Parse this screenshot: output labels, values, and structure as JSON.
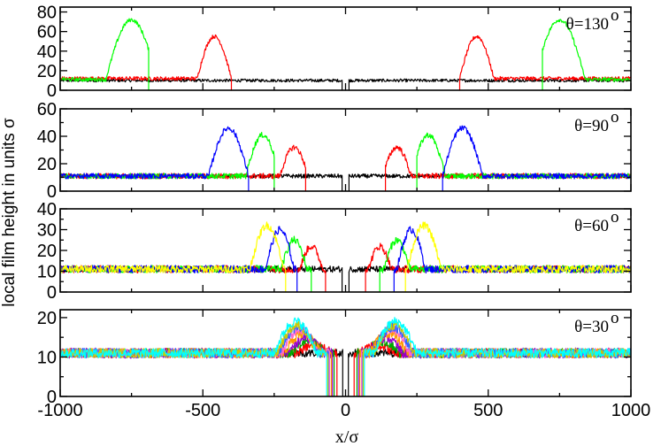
{
  "chart_data": {
    "type": "line",
    "ylabel": "local film height in units σ",
    "xlabel": "x/σ",
    "xlim": [
      -1000,
      1000
    ],
    "xticks": [
      -1000,
      -500,
      0,
      500,
      1000
    ],
    "xtick_labels": [
      "-1000",
      "-500",
      "0",
      "500",
      "1000"
    ],
    "colors": {
      "black": "#000000",
      "red": "#ff0000",
      "green": "#00ff00",
      "blue": "#0000ff",
      "yellow": "#ffff00",
      "cyan": "#00ffff"
    },
    "panels": [
      {
        "label": "θ=130",
        "label_sup": "o",
        "ylim": [
          0,
          85
        ],
        "yticks": [
          0,
          20,
          40,
          60,
          80
        ],
        "ytick_labels": [
          "0",
          "20",
          "40",
          "60",
          "80"
        ],
        "baseline_values": [
          {
            "color": "black",
            "base": 10,
            "noise": 1.5,
            "gap_center": 0,
            "gap_halfwidth": 12,
            "peak": null
          },
          {
            "color": "red",
            "base": 12,
            "noise": 2,
            "gap_center": 0,
            "gap_halfwidth": 400,
            "peak": {
              "pos": 460,
              "height": 55,
              "width": 60
            }
          },
          {
            "color": "green",
            "base": 11,
            "noise": 2,
            "gap_center": 0,
            "gap_halfwidth": 690,
            "peak": {
              "pos": 750,
              "height": 72,
              "width": 90
            }
          }
        ]
      },
      {
        "label": "θ=90",
        "label_sup": "o",
        "ylim": [
          0,
          60
        ],
        "yticks": [
          0,
          20,
          40,
          60
        ],
        "ytick_labels": [
          "0",
          "20",
          "40",
          "60"
        ],
        "baseline_values": [
          {
            "color": "black",
            "base": 11,
            "noise": 1.5,
            "gap_center": 0,
            "gap_halfwidth": 12,
            "peak": null
          },
          {
            "color": "red",
            "base": 11,
            "noise": 2,
            "gap_center": 0,
            "gap_halfwidth": 140,
            "peak": {
              "pos": 180,
              "height": 32,
              "width": 50
            }
          },
          {
            "color": "green",
            "base": 11,
            "noise": 2,
            "gap_center": 0,
            "gap_halfwidth": 250,
            "peak": {
              "pos": 290,
              "height": 41,
              "width": 60
            }
          },
          {
            "color": "blue",
            "base": 11,
            "noise": 2,
            "gap_center": 0,
            "gap_halfwidth": 340,
            "peak": {
              "pos": 410,
              "height": 46,
              "width": 70
            }
          }
        ]
      },
      {
        "label": "θ=60",
        "label_sup": "o",
        "ylim": [
          0,
          40
        ],
        "yticks": [
          0,
          10,
          20,
          30,
          40
        ],
        "ytick_labels": [
          "0",
          "10",
          "20",
          "30",
          "40"
        ],
        "baseline_values": [
          {
            "color": "black",
            "base": 11,
            "noise": 1.5,
            "gap_center": 0,
            "gap_halfwidth": 12,
            "peak": null
          },
          {
            "color": "red",
            "base": 11,
            "noise": 1.8,
            "gap_center": 0,
            "gap_halfwidth": 70,
            "peak": {
              "pos": 120,
              "height": 22,
              "width": 40
            }
          },
          {
            "color": "green",
            "base": 11,
            "noise": 1.8,
            "gap_center": 0,
            "gap_halfwidth": 120,
            "peak": {
              "pos": 180,
              "height": 25,
              "width": 45
            }
          },
          {
            "color": "blue",
            "base": 11,
            "noise": 1.8,
            "gap_center": 0,
            "gap_halfwidth": 170,
            "peak": {
              "pos": 230,
              "height": 30,
              "width": 50
            }
          },
          {
            "color": "yellow",
            "base": 11,
            "noise": 1.8,
            "gap_center": 0,
            "gap_halfwidth": 210,
            "peak": {
              "pos": 275,
              "height": 32,
              "width": 60
            }
          }
        ]
      },
      {
        "label": "θ=30",
        "label_sup": "o",
        "ylim": [
          0,
          22
        ],
        "yticks": [
          0,
          10,
          20
        ],
        "ytick_labels": [
          "0",
          "10",
          "20"
        ],
        "baseline_values": [
          {
            "color": "black",
            "base": 11,
            "noise": 1.0,
            "gap_center": 0,
            "gap_halfwidth": 10,
            "peak": null
          },
          {
            "color": "#ff0000",
            "base": 11,
            "noise": 1.2,
            "gap_center": 0,
            "gap_halfwidth": 30,
            "peak": {
              "pos": 110,
              "height": 13,
              "width": 60
            }
          },
          {
            "color": "#00aa00",
            "base": 11,
            "noise": 1.2,
            "gap_center": 0,
            "gap_halfwidth": 40,
            "peak": {
              "pos": 130,
              "height": 14,
              "width": 60
            }
          },
          {
            "color": "#9900cc",
            "base": 11,
            "noise": 1.3,
            "gap_center": 0,
            "gap_halfwidth": 45,
            "peak": {
              "pos": 140,
              "height": 15,
              "width": 60
            }
          },
          {
            "color": "#ff9900",
            "base": 11,
            "noise": 1.2,
            "gap_center": 0,
            "gap_halfwidth": 50,
            "peak": {
              "pos": 150,
              "height": 16,
              "width": 65
            }
          },
          {
            "color": "#ff66cc",
            "base": 11,
            "noise": 1.2,
            "gap_center": 0,
            "gap_halfwidth": 55,
            "peak": {
              "pos": 160,
              "height": 17,
              "width": 65
            }
          },
          {
            "color": "#3366ff",
            "base": 11,
            "noise": 1.2,
            "gap_center": 0,
            "gap_halfwidth": 60,
            "peak": {
              "pos": 165,
              "height": 17.5,
              "width": 70
            }
          },
          {
            "color": "#cccc00",
            "base": 11,
            "noise": 1.2,
            "gap_center": 0,
            "gap_halfwidth": 62,
            "peak": {
              "pos": 170,
              "height": 18,
              "width": 70
            }
          },
          {
            "color": "#00ffff",
            "base": 11,
            "noise": 1.2,
            "gap_center": 0,
            "gap_halfwidth": 65,
            "peak": {
              "pos": 175,
              "height": 19,
              "width": 75
            }
          }
        ]
      }
    ]
  }
}
